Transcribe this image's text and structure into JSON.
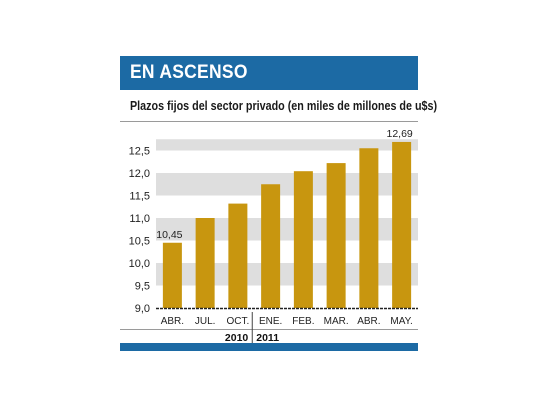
{
  "header": {
    "title": "EN ASCENSO"
  },
  "chart_data": {
    "type": "bar",
    "title": "Plazos fijos del sector privado (en miles de millones de u$s)",
    "categories": [
      "ABR.",
      "JUL.",
      "OCT.",
      "ENE.",
      "FEB.",
      "MAR.",
      "ABR.",
      "MAY."
    ],
    "values": [
      10.45,
      11.0,
      11.32,
      11.75,
      12.04,
      12.22,
      12.55,
      12.69
    ],
    "data_labels": {
      "0": "10,45",
      "7": "12,69"
    },
    "yticks": [
      "9,0",
      "9,5",
      "10,0",
      "10,5",
      "11,0",
      "11,5",
      "12,0",
      "12,5"
    ],
    "ylim": [
      9.0,
      12.75
    ],
    "years": [
      {
        "label": "2010",
        "span": [
          0,
          2
        ]
      },
      {
        "label": "2011",
        "span": [
          3,
          7
        ]
      }
    ],
    "grid": "alternating horizontal bands",
    "colors": {
      "bar": "#c8960f",
      "band": "#dedede",
      "accent": "#1c6aa4"
    }
  }
}
